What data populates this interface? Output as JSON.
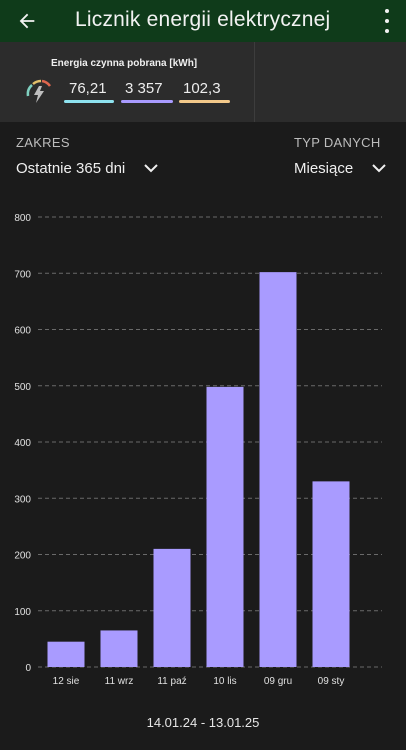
{
  "appbar": {
    "title": "Licznik energii elektrycznej",
    "back_icon": "arrow-left-icon",
    "menu_icon": "more-vertical-icon",
    "color": "#0f3b1a"
  },
  "summary": {
    "label": "Energia czynna pobrana [kWh]",
    "gauge_icon": "gauge-lightning-icon",
    "values": [
      {
        "text": "76,21",
        "color": "#8fe3f0"
      },
      {
        "text": "3 357",
        "color": "#a99bff"
      },
      {
        "text": "102,3",
        "color": "#f3c98a"
      }
    ]
  },
  "filters": {
    "range_label": "ZAKRES",
    "range_value": "Ostatnie 365 dni",
    "type_label": "TYP DANYCH",
    "type_value": "Miesiące"
  },
  "chart_data": {
    "type": "bar",
    "categories": [
      "12 sie",
      "11 wrz",
      "11 paź",
      "10 lis",
      "09 gru",
      "09 sty"
    ],
    "values": [
      45,
      65,
      210,
      498,
      702,
      330
    ],
    "ylim": [
      0,
      800
    ],
    "yticks": [
      0,
      100,
      200,
      300,
      400,
      500,
      600,
      700,
      800
    ],
    "grid": true,
    "bar_color": "#a99bff"
  },
  "footer": {
    "date_range": "14.01.24 - 13.01.25"
  }
}
